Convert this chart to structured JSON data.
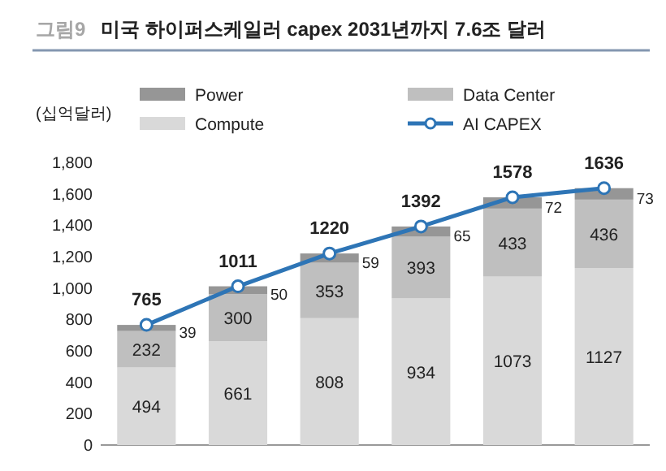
{
  "chart_data": {
    "type": "bar",
    "title": "미국 하이퍼스케일러 capex 2031년까지 7.6조 달러",
    "annotations": [
      "그림9"
    ],
    "ylabel": "(십억달러)",
    "categories": [
      null,
      null,
      null,
      null,
      null,
      null
    ],
    "stacked": true,
    "data_labels": true,
    "legend": "top",
    "grid": false,
    "marker": "circle",
    "ylim": [
      0,
      1800
    ],
    "yticks": [
      {
        "value": 0,
        "label": "0"
      },
      {
        "value": 200,
        "label": "200"
      },
      {
        "value": 400,
        "label": "400"
      },
      {
        "value": 600,
        "label": "600"
      },
      {
        "value": 800,
        "label": "800"
      },
      {
        "value": 1000,
        "label": "1,000"
      },
      {
        "value": 1200,
        "label": "1,200"
      },
      {
        "value": 1400,
        "label": "1,400"
      },
      {
        "value": 1600,
        "label": "1,600"
      },
      {
        "value": 1800,
        "label": "1,800"
      }
    ],
    "series": [
      {
        "name": "Compute",
        "color": "#d9d9d9",
        "values": [
          494,
          661,
          808,
          934,
          1073,
          1127
        ]
      },
      {
        "name": "Data Center",
        "color": "#bfbfbf",
        "values": [
          232,
          300,
          353,
          393,
          433,
          436
        ]
      },
      {
        "name": "Power",
        "color": "#969696",
        "values": [
          39,
          50,
          59,
          65,
          72,
          73
        ]
      },
      {
        "name": "AI CAPEX",
        "type": "line",
        "color": "#2e75b6",
        "values": [
          765,
          1011,
          1220,
          1392,
          1578,
          1636
        ]
      }
    ]
  }
}
